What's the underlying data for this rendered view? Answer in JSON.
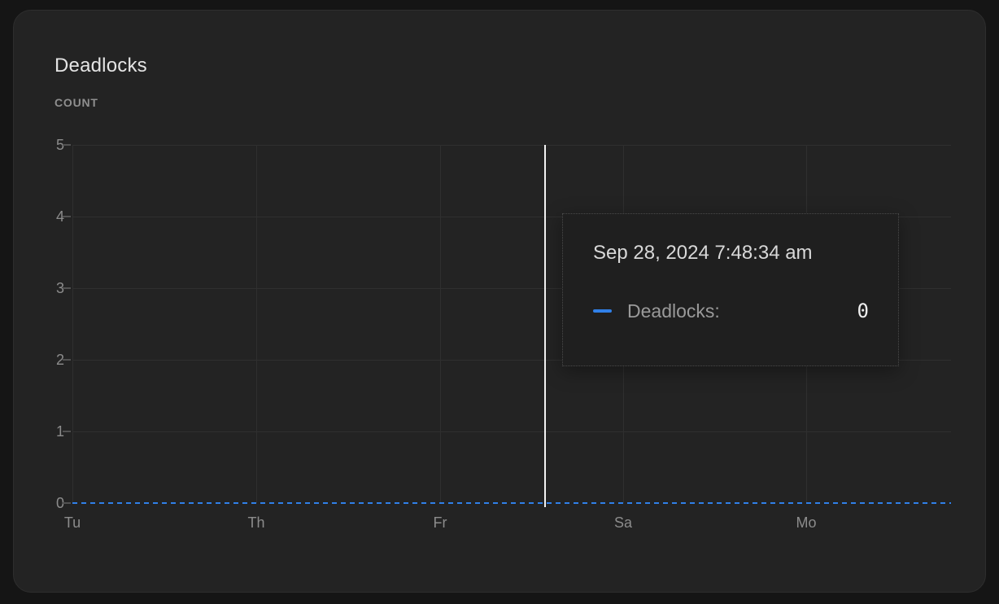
{
  "page": {
    "background_color": "#151515",
    "card_background_color": "#232323"
  },
  "header": {
    "title": "Deadlocks",
    "unit_label": "COUNT"
  },
  "chart_data": {
    "type": "line",
    "title": "Deadlocks",
    "ylabel": "COUNT",
    "xlabel": "",
    "ylim": [
      0,
      5
    ],
    "y_ticks": [
      0,
      1,
      2,
      3,
      4,
      5
    ],
    "y_tick_labels": [
      "5",
      "4",
      "3",
      "2",
      "1",
      "0"
    ],
    "x_tick_labels": [
      "Tu",
      "Th",
      "Fr",
      "Sa",
      "Mo"
    ],
    "grid": true,
    "legend_position": "none",
    "series": [
      {
        "name": "Deadlocks",
        "color": "#3080e8",
        "line_style": "dashed",
        "x": [
          "Tu",
          "Th",
          "Fr",
          "Sa",
          "Mo"
        ],
        "values": [
          0,
          0,
          0,
          0,
          0
        ]
      }
    ],
    "crosshair_color": "#f2f2f2",
    "hovered_point": {
      "timestamp": "Sep 28, 2024 7:48:34 am",
      "series": "Deadlocks",
      "value": 0
    }
  },
  "tooltip": {
    "timestamp": "Sep 28, 2024 7:48:34 am",
    "series_label": "Deadlocks:",
    "value": "0",
    "marker_color": "#3080e8"
  }
}
